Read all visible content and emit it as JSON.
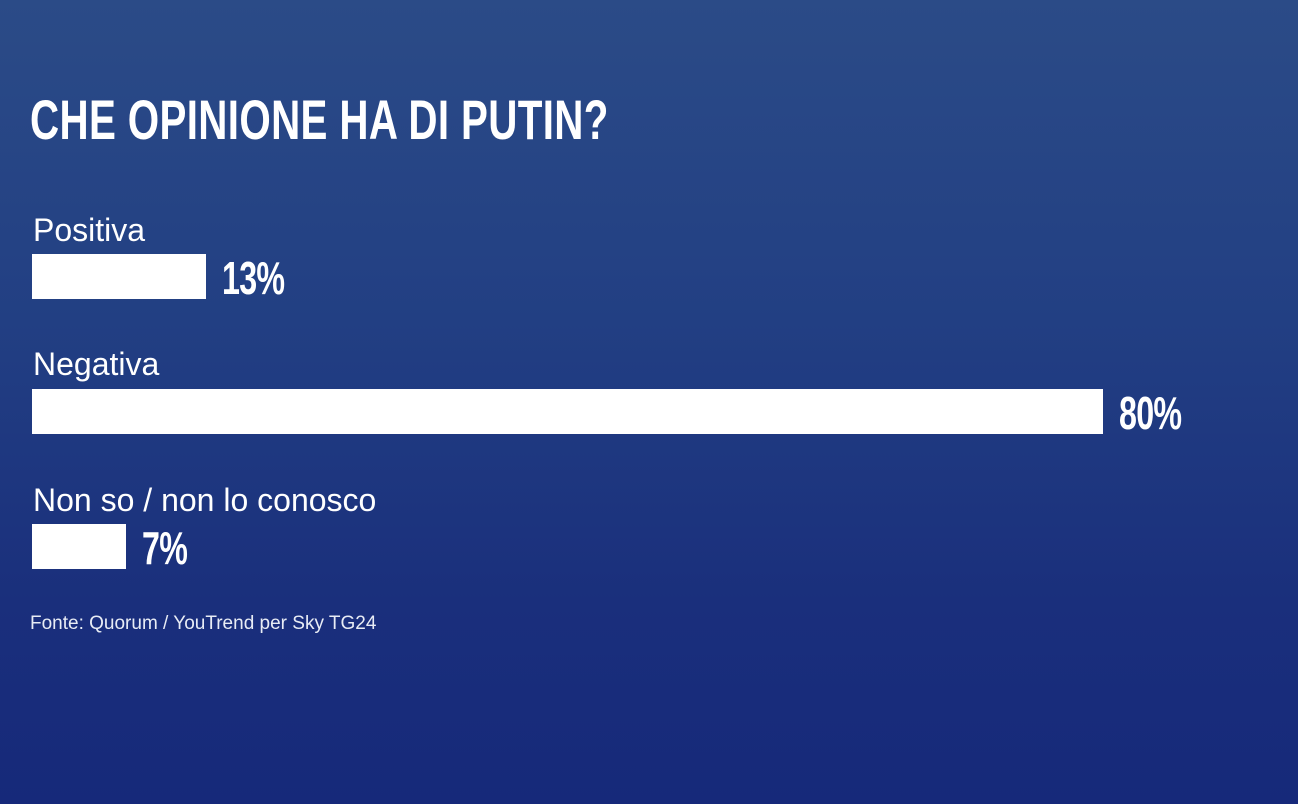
{
  "chart_data": {
    "type": "bar",
    "orientation": "horizontal",
    "title": "CHE OPINIONE HA DI PUTIN?",
    "categories": [
      "Positiva",
      "Negativa",
      "Non so / non lo conosco"
    ],
    "values": [
      13,
      80,
      7
    ],
    "value_labels": [
      "13%",
      "80%",
      "7%"
    ],
    "unit": "%",
    "xlim": [
      0,
      100
    ],
    "grid": false,
    "bar_color": "#ffffff",
    "background_color": "#1f3a82",
    "source": "Fonte: Quorum / YouTrend per Sky TG24"
  }
}
